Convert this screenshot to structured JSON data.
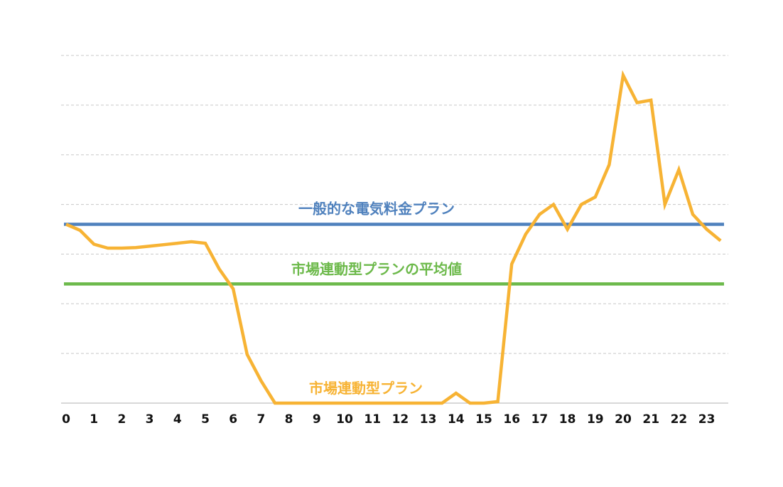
{
  "chart_data": {
    "type": "line",
    "title": "",
    "xlabel": "",
    "ylabel": "",
    "xlim": [
      0,
      24
    ],
    "ylim": [
      0,
      7
    ],
    "grid": true,
    "x_ticks": [
      "0",
      "1",
      "2",
      "3",
      "4",
      "5",
      "6",
      "7",
      "8",
      "9",
      "10",
      "11",
      "12",
      "13",
      "14",
      "15",
      "16",
      "17",
      "18",
      "19",
      "20",
      "21",
      "22",
      "23"
    ],
    "colors": {
      "general": "#4f81bd",
      "average": "#6cb94a",
      "market": "#f7b334",
      "grid": "#c8c8c8",
      "baseline": "#cccccc"
    },
    "series": [
      {
        "name": "一般的な電気料金プラン",
        "key": "general",
        "kind": "hline",
        "value": 3.6
      },
      {
        "name": "市場連動型プランの平均値",
        "key": "average",
        "kind": "hline",
        "value": 2.4
      },
      {
        "name": "市場連動型プラン",
        "key": "market",
        "kind": "line",
        "x": [
          0,
          0.5,
          1,
          1.5,
          2,
          2.5,
          3,
          3.5,
          4,
          4.5,
          5,
          5.5,
          6,
          6.5,
          7,
          7.5,
          8,
          8.5,
          9,
          9.5,
          10,
          10.5,
          11,
          11.5,
          12,
          12.5,
          13,
          13.5,
          14,
          14.5,
          15,
          15.5,
          16,
          16.5,
          17,
          17.5,
          18,
          18.5,
          19,
          19.5,
          20,
          20.5,
          21,
          21.5,
          22,
          22.5,
          23,
          23.5
        ],
        "values": [
          3.6,
          3.48,
          3.2,
          3.12,
          3.12,
          3.13,
          3.16,
          3.19,
          3.22,
          3.25,
          3.22,
          2.7,
          2.3,
          0.98,
          0.45,
          0,
          0,
          0,
          0,
          0,
          0,
          0,
          0,
          0,
          0,
          0,
          0,
          0,
          0.2,
          0,
          0,
          0.03,
          2.8,
          3.4,
          3.8,
          4.0,
          3.5,
          4.0,
          4.15,
          4.8,
          6.6,
          6.05,
          6.1,
          4.0,
          4.7,
          3.8,
          3.5,
          3.27
        ]
      }
    ]
  }
}
